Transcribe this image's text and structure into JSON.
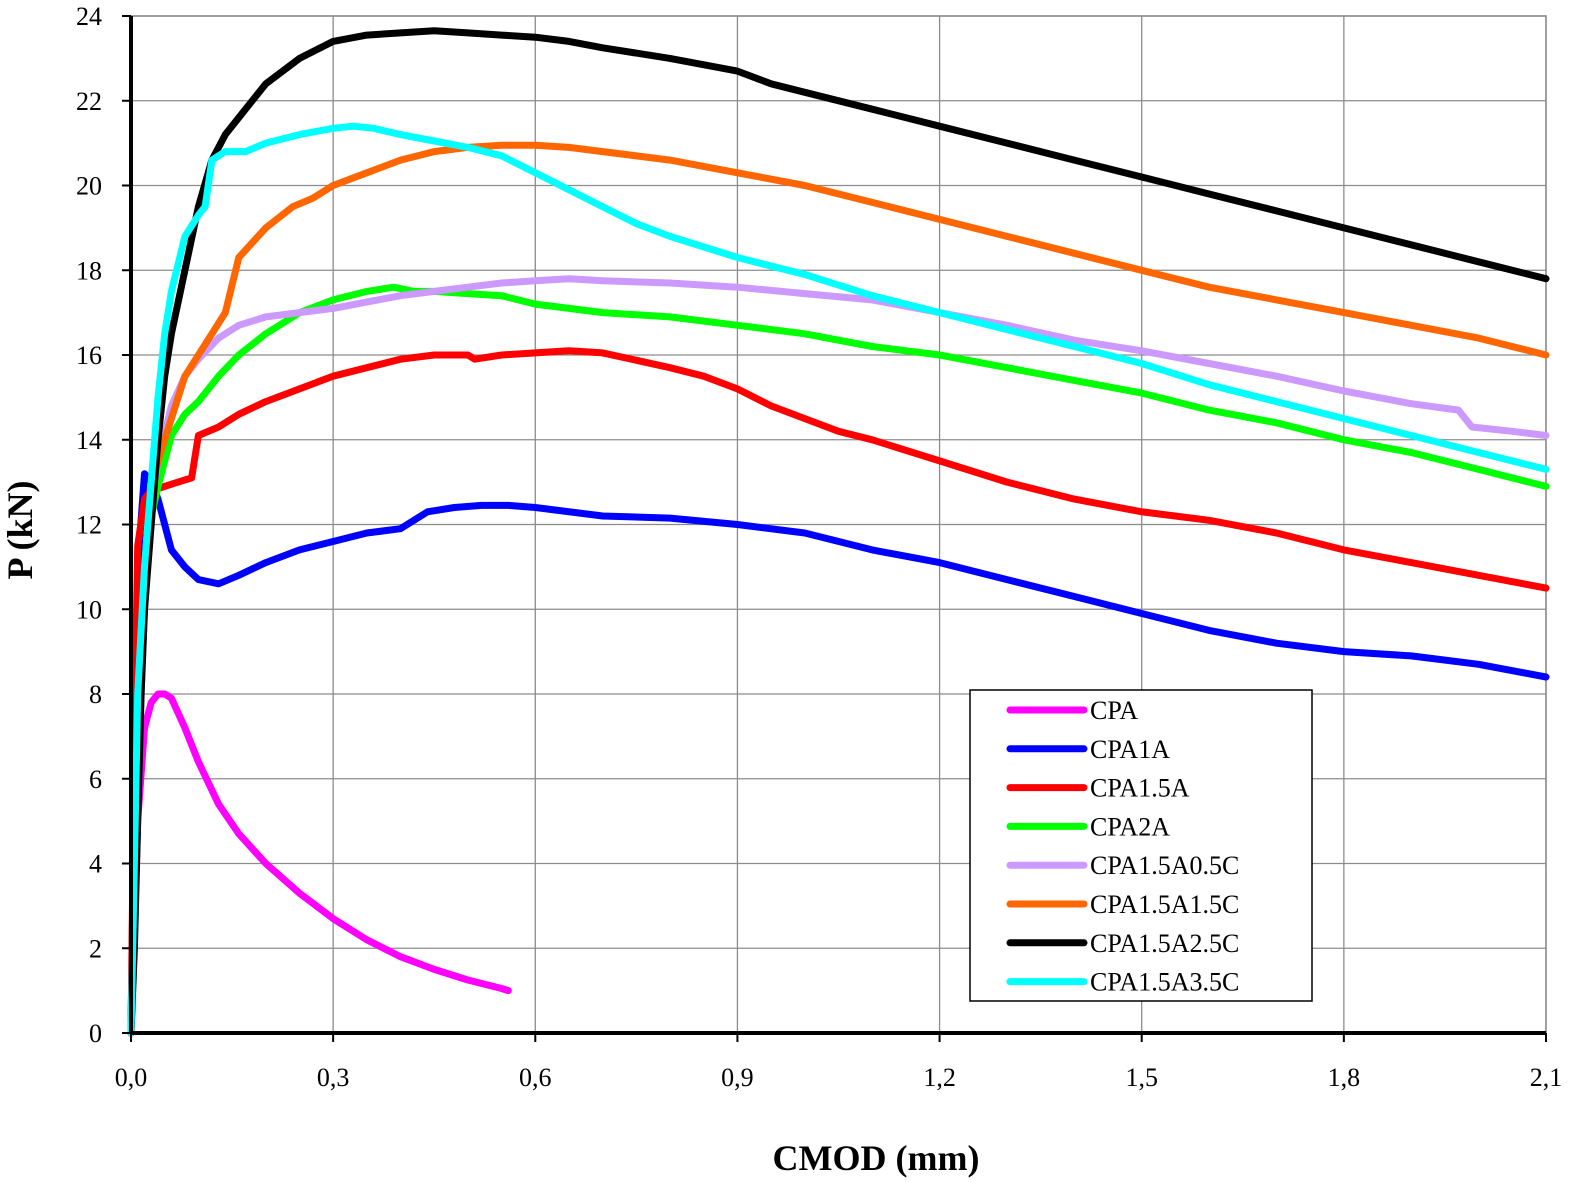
{
  "chart_data": {
    "type": "line",
    "title": "",
    "xlabel": "CMOD (mm)",
    "ylabel": "P (kN)",
    "xlim": [
      0,
      2.1
    ],
    "ylim": [
      0,
      24
    ],
    "xticks": [
      "0,0",
      "0,3",
      "0,6",
      "0,9",
      "1,2",
      "1,5",
      "1,8",
      "2,1"
    ],
    "yticks": [
      "0",
      "2",
      "4",
      "6",
      "8",
      "10",
      "12",
      "14",
      "16",
      "18",
      "20",
      "22",
      "24"
    ],
    "grid": true,
    "legend_position": "lower-right",
    "series": [
      {
        "name": "CPA",
        "color": "#ff00ff",
        "x": [
          0,
          0.005,
          0.01,
          0.02,
          0.03,
          0.04,
          0.05,
          0.06,
          0.08,
          0.1,
          0.13,
          0.16,
          0.2,
          0.25,
          0.3,
          0.35,
          0.4,
          0.45,
          0.5,
          0.55,
          0.56
        ],
        "y": [
          0,
          2.5,
          5.0,
          7.2,
          7.8,
          8.0,
          8.0,
          7.9,
          7.2,
          6.4,
          5.4,
          4.7,
          4.0,
          3.3,
          2.7,
          2.2,
          1.8,
          1.5,
          1.25,
          1.05,
          1.0
        ]
      },
      {
        "name": "CPA1A",
        "color": "#0000ff",
        "x": [
          0,
          0.005,
          0.01,
          0.02,
          0.03,
          0.04,
          0.06,
          0.08,
          0.1,
          0.13,
          0.16,
          0.2,
          0.25,
          0.3,
          0.35,
          0.4,
          0.44,
          0.48,
          0.52,
          0.56,
          0.6,
          0.7,
          0.8,
          0.9,
          1.0,
          1.1,
          1.2,
          1.3,
          1.4,
          1.5,
          1.6,
          1.7,
          1.8,
          1.9,
          2.0,
          2.1
        ],
        "y": [
          0,
          6.0,
          11.0,
          13.2,
          13.0,
          12.6,
          11.4,
          11.0,
          10.7,
          10.6,
          10.8,
          11.1,
          11.4,
          11.6,
          11.8,
          11.9,
          12.3,
          12.4,
          12.45,
          12.45,
          12.4,
          12.2,
          12.15,
          12.0,
          11.8,
          11.4,
          11.1,
          10.7,
          10.3,
          9.9,
          9.5,
          9.2,
          9.0,
          8.9,
          8.7,
          8.4
        ]
      },
      {
        "name": "CPA1.5A",
        "color": "#ff0000",
        "x": [
          0,
          0.005,
          0.01,
          0.02,
          0.03,
          0.05,
          0.07,
          0.09,
          0.1,
          0.13,
          0.16,
          0.2,
          0.25,
          0.3,
          0.35,
          0.4,
          0.45,
          0.5,
          0.51,
          0.55,
          0.6,
          0.65,
          0.7,
          0.8,
          0.85,
          0.9,
          0.95,
          1.0,
          1.05,
          1.1,
          1.2,
          1.3,
          1.4,
          1.5,
          1.6,
          1.7,
          1.8,
          1.9,
          2.0,
          2.1
        ],
        "y": [
          0,
          7.0,
          11.5,
          12.6,
          12.8,
          12.9,
          13.0,
          13.1,
          14.1,
          14.3,
          14.6,
          14.9,
          15.2,
          15.5,
          15.7,
          15.9,
          16.0,
          16.0,
          15.9,
          16.0,
          16.05,
          16.1,
          16.05,
          15.7,
          15.5,
          15.2,
          14.8,
          14.5,
          14.2,
          14.0,
          13.5,
          13.0,
          12.6,
          12.3,
          12.1,
          11.8,
          11.4,
          11.1,
          10.8,
          10.5
        ]
      },
      {
        "name": "CPA2A",
        "color": "#00ff00",
        "x": [
          0,
          0.01,
          0.02,
          0.03,
          0.04,
          0.06,
          0.08,
          0.1,
          0.13,
          0.16,
          0.2,
          0.25,
          0.3,
          0.35,
          0.39,
          0.42,
          0.45,
          0.5,
          0.55,
          0.6,
          0.7,
          0.8,
          0.9,
          1.0,
          1.1,
          1.2,
          1.3,
          1.4,
          1.5,
          1.6,
          1.7,
          1.8,
          1.9,
          2.0,
          2.1
        ],
        "y": [
          0,
          6.0,
          10.0,
          12.2,
          12.9,
          14.1,
          14.6,
          14.9,
          15.5,
          16.0,
          16.5,
          17.0,
          17.3,
          17.5,
          17.6,
          17.5,
          17.5,
          17.45,
          17.4,
          17.2,
          17.0,
          16.9,
          16.7,
          16.5,
          16.2,
          16.0,
          15.7,
          15.4,
          15.1,
          14.7,
          14.4,
          14.0,
          13.7,
          13.3,
          12.9
        ]
      },
      {
        "name": "CPA1.5A0.5C",
        "color": "#cc99ff",
        "x": [
          0,
          0.01,
          0.02,
          0.03,
          0.04,
          0.06,
          0.08,
          0.1,
          0.13,
          0.16,
          0.2,
          0.25,
          0.3,
          0.35,
          0.4,
          0.45,
          0.5,
          0.55,
          0.6,
          0.65,
          0.7,
          0.8,
          0.9,
          1.0,
          1.1,
          1.2,
          1.3,
          1.4,
          1.5,
          1.6,
          1.7,
          1.8,
          1.9,
          1.97,
          1.99,
          2.05,
          2.1
        ],
        "y": [
          0,
          6.0,
          10.0,
          12.5,
          13.5,
          14.8,
          15.5,
          15.9,
          16.4,
          16.7,
          16.9,
          17.0,
          17.1,
          17.25,
          17.4,
          17.5,
          17.6,
          17.7,
          17.75,
          17.8,
          17.75,
          17.7,
          17.6,
          17.45,
          17.3,
          17.0,
          16.7,
          16.35,
          16.1,
          15.8,
          15.5,
          15.15,
          14.85,
          14.7,
          14.3,
          14.2,
          14.1
        ]
      },
      {
        "name": "CPA1.5A1.5C",
        "color": "#ff6600",
        "x": [
          0,
          0.01,
          0.02,
          0.03,
          0.04,
          0.06,
          0.08,
          0.1,
          0.12,
          0.14,
          0.16,
          0.2,
          0.24,
          0.27,
          0.3,
          0.35,
          0.4,
          0.45,
          0.5,
          0.55,
          0.6,
          0.65,
          0.7,
          0.8,
          0.9,
          1.0,
          1.1,
          1.2,
          1.3,
          1.4,
          1.5,
          1.6,
          1.7,
          1.8,
          1.9,
          2.0,
          2.1
        ],
        "y": [
          0,
          6.0,
          10.5,
          12.8,
          13.5,
          14.5,
          15.5,
          16.0,
          16.5,
          17.0,
          18.3,
          19.0,
          19.5,
          19.7,
          20.0,
          20.3,
          20.6,
          20.8,
          20.9,
          20.95,
          20.95,
          20.9,
          20.8,
          20.6,
          20.3,
          20.0,
          19.6,
          19.2,
          18.8,
          18.4,
          18.0,
          17.6,
          17.3,
          17.0,
          16.7,
          16.4,
          16.0
        ]
      },
      {
        "name": "CPA1.5A2.5C",
        "color": "#000000",
        "x": [
          0,
          0.005,
          0.01,
          0.015,
          0.02,
          0.03,
          0.04,
          0.05,
          0.06,
          0.08,
          0.1,
          0.12,
          0.14,
          0.17,
          0.2,
          0.25,
          0.3,
          0.35,
          0.4,
          0.45,
          0.5,
          0.55,
          0.6,
          0.65,
          0.7,
          0.8,
          0.9,
          0.95,
          1.0,
          1.1,
          1.2,
          1.3,
          1.4,
          1.5,
          1.6,
          1.7,
          1.8,
          1.9,
          2.0,
          2.1
        ],
        "y": [
          0,
          2.0,
          5.0,
          8.0,
          10.0,
          12.0,
          14.0,
          15.5,
          16.5,
          18.0,
          19.5,
          20.6,
          21.2,
          21.8,
          22.4,
          23.0,
          23.4,
          23.55,
          23.6,
          23.65,
          23.6,
          23.55,
          23.5,
          23.4,
          23.25,
          23.0,
          22.7,
          22.4,
          22.2,
          21.8,
          21.4,
          21.0,
          20.6,
          20.2,
          19.8,
          19.4,
          19.0,
          18.6,
          18.2,
          17.8
        ]
      },
      {
        "name": "CPA1.5A3.5C",
        "color": "#00ffff",
        "x": [
          0,
          0.005,
          0.01,
          0.02,
          0.03,
          0.04,
          0.05,
          0.06,
          0.08,
          0.1,
          0.11,
          0.12,
          0.14,
          0.17,
          0.2,
          0.25,
          0.3,
          0.33,
          0.36,
          0.4,
          0.45,
          0.5,
          0.55,
          0.6,
          0.65,
          0.7,
          0.75,
          0.8,
          0.9,
          1.0,
          1.1,
          1.2,
          1.3,
          1.4,
          1.5,
          1.6,
          1.7,
          1.8,
          1.9,
          2.0,
          2.1
        ],
        "y": [
          0,
          4.0,
          8.0,
          11.0,
          13.0,
          15.0,
          16.5,
          17.5,
          18.8,
          19.3,
          19.5,
          20.6,
          20.8,
          20.8,
          21.0,
          21.2,
          21.35,
          21.4,
          21.35,
          21.2,
          21.05,
          20.9,
          20.7,
          20.3,
          19.9,
          19.5,
          19.1,
          18.8,
          18.3,
          17.9,
          17.4,
          17.0,
          16.6,
          16.2,
          15.8,
          15.3,
          14.9,
          14.5,
          14.1,
          13.7,
          13.3
        ]
      }
    ]
  }
}
